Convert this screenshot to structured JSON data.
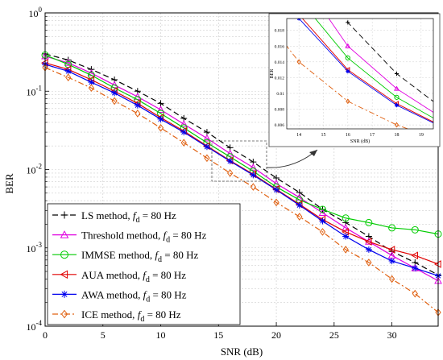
{
  "chart_data": {
    "type": "line",
    "title": "",
    "xlabel": "SNR (dB)",
    "ylabel": "BER",
    "xlim": [
      0,
      34
    ],
    "ylim": [
      0.0001,
      1
    ],
    "yscale": "log",
    "grid": true,
    "legend_position": "bottom-left",
    "x_ticks": [
      "0",
      "5",
      "10",
      "15",
      "20",
      "25",
      "30"
    ],
    "y_ticks": [
      {
        "value": 1,
        "base": "10",
        "exp": "0"
      },
      {
        "value": 0.1,
        "base": "10",
        "exp": "-1"
      },
      {
        "value": 0.01,
        "base": "10",
        "exp": "-2"
      },
      {
        "value": 0.001,
        "base": "10",
        "exp": "-3"
      },
      {
        "value": 0.0001,
        "base": "10",
        "exp": "-4"
      }
    ],
    "x": [
      0,
      2,
      4,
      6,
      8,
      10,
      12,
      14,
      16,
      18,
      20,
      22,
      24,
      26,
      28,
      30,
      32,
      34
    ],
    "series": [
      {
        "name": "LS method, ",
        "fd_unit": " = 80 Hz",
        "color": "#000000",
        "dash": "7,4",
        "marker": "plus",
        "values": [
          0.3,
          0.25,
          0.19,
          0.14,
          0.1,
          0.07,
          0.045,
          0.03,
          0.019,
          0.0125,
          0.0078,
          0.0051,
          0.0031,
          0.0021,
          0.0014,
          0.0009,
          0.00065,
          0.00045
        ]
      },
      {
        "name": "Threshold method, ",
        "fd_unit": " = 80 Hz",
        "color": "#e000e0",
        "dash": "",
        "marker": "triangle-up",
        "values": [
          0.28,
          0.23,
          0.17,
          0.12,
          0.085,
          0.058,
          0.038,
          0.025,
          0.016,
          0.0106,
          0.0066,
          0.0044,
          0.0028,
          0.0018,
          0.0012,
          0.0008,
          0.00055,
          0.00038
        ]
      },
      {
        "name": "IMMSE method, ",
        "fd_unit": " = 80 Hz",
        "color": "#00cc00",
        "dash": "",
        "marker": "circle",
        "values": [
          0.29,
          0.22,
          0.16,
          0.11,
          0.078,
          0.052,
          0.034,
          0.022,
          0.0145,
          0.0095,
          0.006,
          0.0041,
          0.0031,
          0.0024,
          0.0021,
          0.0018,
          0.0017,
          0.0015
        ]
      },
      {
        "name": "AUA method, ",
        "fd_unit": " = 80 Hz",
        "color": "#e00000",
        "dash": "",
        "marker": "triangle-left",
        "values": [
          0.23,
          0.19,
          0.14,
          0.1,
          0.07,
          0.046,
          0.031,
          0.02,
          0.013,
          0.0087,
          0.0056,
          0.0036,
          0.0023,
          0.0016,
          0.0012,
          0.00095,
          0.0008,
          0.00062
        ]
      },
      {
        "name": "AWA method, ",
        "fd_unit": " = 80 Hz",
        "color": "#0000ee",
        "dash": "",
        "marker": "asterisk",
        "values": [
          0.22,
          0.18,
          0.13,
          0.095,
          0.066,
          0.044,
          0.03,
          0.0195,
          0.0128,
          0.0085,
          0.0055,
          0.0035,
          0.0022,
          0.0014,
          0.00095,
          0.00068,
          0.00055,
          0.00044
        ]
      },
      {
        "name": "ICE method, ",
        "fd_unit": " = 80 Hz",
        "color": "#e06010",
        "dash": "7,3,2,3",
        "marker": "diamond",
        "values": [
          0.2,
          0.15,
          0.11,
          0.075,
          0.052,
          0.034,
          0.022,
          0.014,
          0.009,
          0.006,
          0.0038,
          0.0025,
          0.0016,
          0.00095,
          0.00065,
          0.0004,
          0.00026,
          0.00015
        ]
      }
    ],
    "legend_subscript_symbol": "f",
    "legend_subscript": "d",
    "inset": {
      "xlabel": "SNR (dB)",
      "ylabel": "BER",
      "xlim": [
        13.5,
        19.5
      ],
      "ylim": [
        0.0055,
        0.0195
      ],
      "x_ticks": [
        "14",
        "15",
        "16",
        "17",
        "18",
        "19"
      ],
      "y_ticks": [
        "0.006",
        "0.008",
        "0.01",
        "0.012",
        "0.014",
        "0.016",
        "0.018"
      ]
    }
  }
}
